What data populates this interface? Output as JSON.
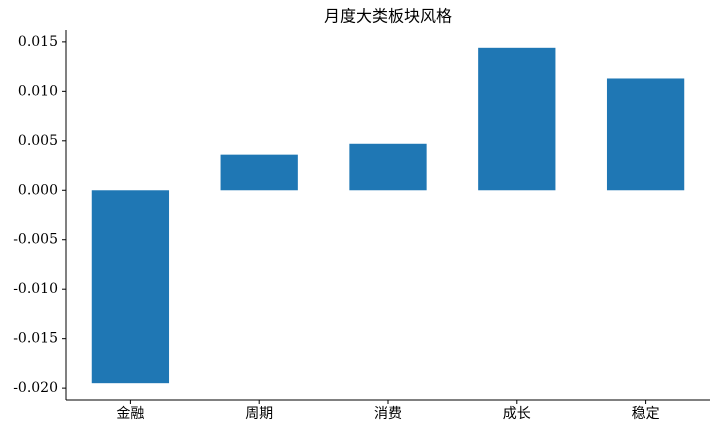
{
  "chart_data": {
    "type": "bar",
    "title": "月度大类板块风格",
    "categories": [
      "金融",
      "周期",
      "消费",
      "成长",
      "稳定"
    ],
    "values": [
      -0.0195,
      0.0036,
      0.0047,
      0.0144,
      0.0113
    ],
    "color": "#1f77b4",
    "ylim": [
      -0.0212,
      0.0162
    ],
    "yticks": [
      {
        "value": -0.02,
        "label": "-0.020"
      },
      {
        "value": -0.015,
        "label": "-0.015"
      },
      {
        "value": -0.01,
        "label": "-0.010"
      },
      {
        "value": -0.005,
        "label": "-0.005"
      },
      {
        "value": 0,
        "label": "0.000"
      },
      {
        "value": 0.005,
        "label": "0.005"
      },
      {
        "value": 0.01,
        "label": "0.010"
      },
      {
        "value": 0.015,
        "label": "0.015"
      }
    ],
    "grid": false
  }
}
